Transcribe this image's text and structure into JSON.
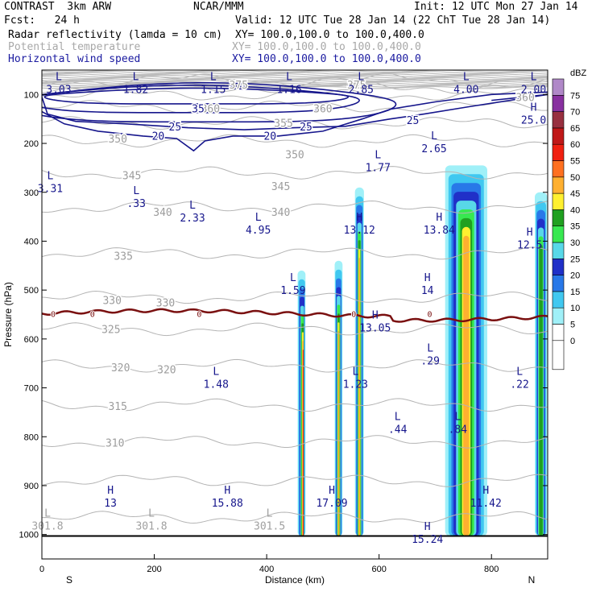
{
  "header": {
    "model": "CONTRAST  3km ARW",
    "org": "NCAR/MMM",
    "init": "Init: 12 UTC Mon 27 Jan 14",
    "fcst": "Fcst:   24 h",
    "valid": "Valid: 12 UTC Tue 28 Jan 14 (22 ChT Tue 28 Jan 14)",
    "fields": [
      {
        "name": "Radar reflectivity (lamda = 10 cm)",
        "xy": "XY= 100.0,100.0 to 100.0,400.0",
        "color": "#000000"
      },
      {
        "name": "Potential temperature",
        "xy": "XY= 100.0,100.0 to 100.0,400.0",
        "color": "#a8a8a8"
      },
      {
        "name": "Horizontal wind speed",
        "xy": "XY= 100.0,100.0 to 100.0,400.0",
        "color": "#1a1aa0"
      }
    ]
  },
  "chart_data": {
    "type": "contour-cross-section",
    "xlabel": "Distance (km)",
    "ylabel": "Pressure (hPa)",
    "xlim": [
      0,
      900
    ],
    "ylim": [
      1050,
      50
    ],
    "x_ticks": [
      "0",
      "200",
      "400",
      "600",
      "800"
    ],
    "x_tick_values": [
      0,
      200,
      400,
      600,
      800
    ],
    "y_ticks": [
      "100",
      "200",
      "300",
      "400",
      "500",
      "600",
      "700",
      "800",
      "900",
      "1000"
    ],
    "y_tick_values": [
      100,
      200,
      300,
      400,
      500,
      600,
      700,
      800,
      900,
      1000
    ],
    "x_endpoints": {
      "left": "S",
      "right": "N"
    },
    "colorbar": {
      "unit": "dBZ",
      "levels": [
        0,
        5,
        10,
        15,
        20,
        25,
        30,
        35,
        40,
        45,
        50,
        55,
        60,
        65,
        70,
        75
      ],
      "colors": [
        "#ffffff",
        "#a0f0f8",
        "#40c8f0",
        "#2878e8",
        "#2030c8",
        "#58d8e8",
        "#38e850",
        "#20a020",
        "#fff030",
        "#ffb030",
        "#ff7020",
        "#f02010",
        "#c01818",
        "#983040",
        "#8830a0",
        "#b088c8"
      ]
    },
    "theta_labels": [
      {
        "text": "375",
        "x": 350,
        "p": 80
      },
      {
        "text": "375",
        "x": 560,
        "p": 80
      },
      {
        "text": "360",
        "x": 300,
        "p": 128
      },
      {
        "text": "360",
        "x": 500,
        "p": 128
      },
      {
        "text": "360",
        "x": 860,
        "p": 105
      },
      {
        "text": "355",
        "x": 430,
        "p": 158
      },
      {
        "text": "350",
        "x": 135,
        "p": 190
      },
      {
        "text": "350",
        "x": 450,
        "p": 222
      },
      {
        "text": "345",
        "x": 160,
        "p": 265
      },
      {
        "text": "345",
        "x": 425,
        "p": 287
      },
      {
        "text": "340",
        "x": 215,
        "p": 340
      },
      {
        "text": "340",
        "x": 425,
        "p": 340
      },
      {
        "text": "335",
        "x": 145,
        "p": 430
      },
      {
        "text": "330",
        "x": 125,
        "p": 520
      },
      {
        "text": "330",
        "x": 220,
        "p": 525
      },
      {
        "text": "325",
        "x": 123,
        "p": 580
      },
      {
        "text": "320",
        "x": 140,
        "p": 658
      },
      {
        "text": "320",
        "x": 222,
        "p": 662
      },
      {
        "text": "315",
        "x": 135,
        "p": 737
      },
      {
        "text": "310",
        "x": 130,
        "p": 812
      }
    ],
    "wind_labels": [
      {
        "text": "35",
        "x": 278,
        "p": 128
      },
      {
        "text": "25",
        "x": 237,
        "p": 165
      },
      {
        "text": "25",
        "x": 470,
        "p": 165
      },
      {
        "text": "25",
        "x": 660,
        "p": 152
      },
      {
        "text": "20",
        "x": 207,
        "p": 184
      },
      {
        "text": "20",
        "x": 406,
        "p": 184
      }
    ],
    "lh_markers": [
      {
        "letter": "L",
        "value": "3.03",
        "x": 30,
        "p": 77
      },
      {
        "letter": "L",
        "value": "1.82",
        "x": 167,
        "p": 77
      },
      {
        "letter": "L",
        "value": "1.15",
        "x": 305,
        "p": 77
      },
      {
        "letter": "L",
        "value": "1.16",
        "x": 440,
        "p": 77
      },
      {
        "letter": "L",
        "value": "2.85",
        "x": 568,
        "p": 77
      },
      {
        "letter": "L",
        "value": "4.00",
        "x": 755,
        "p": 77
      },
      {
        "letter": "L",
        "value": "2.00",
        "x": 875,
        "p": 77
      },
      {
        "letter": "H",
        "value": "25.0",
        "x": 875,
        "p": 140
      },
      {
        "letter": "L",
        "value": "2.65",
        "x": 698,
        "p": 198
      },
      {
        "letter": "L",
        "value": "1.77",
        "x": 598,
        "p": 237
      },
      {
        "letter": "L",
        "value": "3.31",
        "x": 15,
        "p": 280
      },
      {
        "letter": "L",
        "value": ".33",
        "x": 168,
        "p": 310
      },
      {
        "letter": "L",
        "value": "2.33",
        "x": 268,
        "p": 340
      },
      {
        "letter": "L",
        "value": "4.95",
        "x": 385,
        "p": 365
      },
      {
        "letter": "H",
        "value": "13.12",
        "x": 565,
        "p": 365
      },
      {
        "letter": "H",
        "value": "13.84",
        "x": 707,
        "p": 365
      },
      {
        "letter": "H",
        "value": "12.5",
        "x": 868,
        "p": 395
      },
      {
        "letter": "L",
        "value": "1.59",
        "x": 447,
        "p": 488
      },
      {
        "letter": "H",
        "value": "14",
        "x": 686,
        "p": 488
      },
      {
        "letter": "H",
        "value": "13.05",
        "x": 593,
        "p": 565
      },
      {
        "letter": "L",
        "value": ".29",
        "x": 691,
        "p": 632
      },
      {
        "letter": "L",
        "value": "1.48",
        "x": 310,
        "p": 680
      },
      {
        "letter": "L",
        "value": "1.23",
        "x": 558,
        "p": 680
      },
      {
        "letter": "L",
        "value": ".22",
        "x": 850,
        "p": 680
      },
      {
        "letter": "L",
        "value": ".44",
        "x": 633,
        "p": 772
      },
      {
        "letter": "L",
        "value": ".84",
        "x": 740,
        "p": 772
      },
      {
        "letter": "H",
        "value": "13",
        "x": 122,
        "p": 923
      },
      {
        "letter": "H",
        "value": "15.88",
        "x": 330,
        "p": 923
      },
      {
        "letter": "H",
        "value": "17.09",
        "x": 516,
        "p": 923
      },
      {
        "letter": "H",
        "value": "11.42",
        "x": 790,
        "p": 923
      },
      {
        "letter": "L",
        "value": "301.8",
        "x": 10,
        "p": 970
      },
      {
        "letter": "L",
        "value": "301.8",
        "x": 195,
        "p": 970
      },
      {
        "letter": "L",
        "value": "301.5",
        "x": 405,
        "p": 970
      },
      {
        "letter": "H",
        "value": "15.24",
        "x": 686,
        "p": 997
      }
    ],
    "freezing_label": "0"
  }
}
